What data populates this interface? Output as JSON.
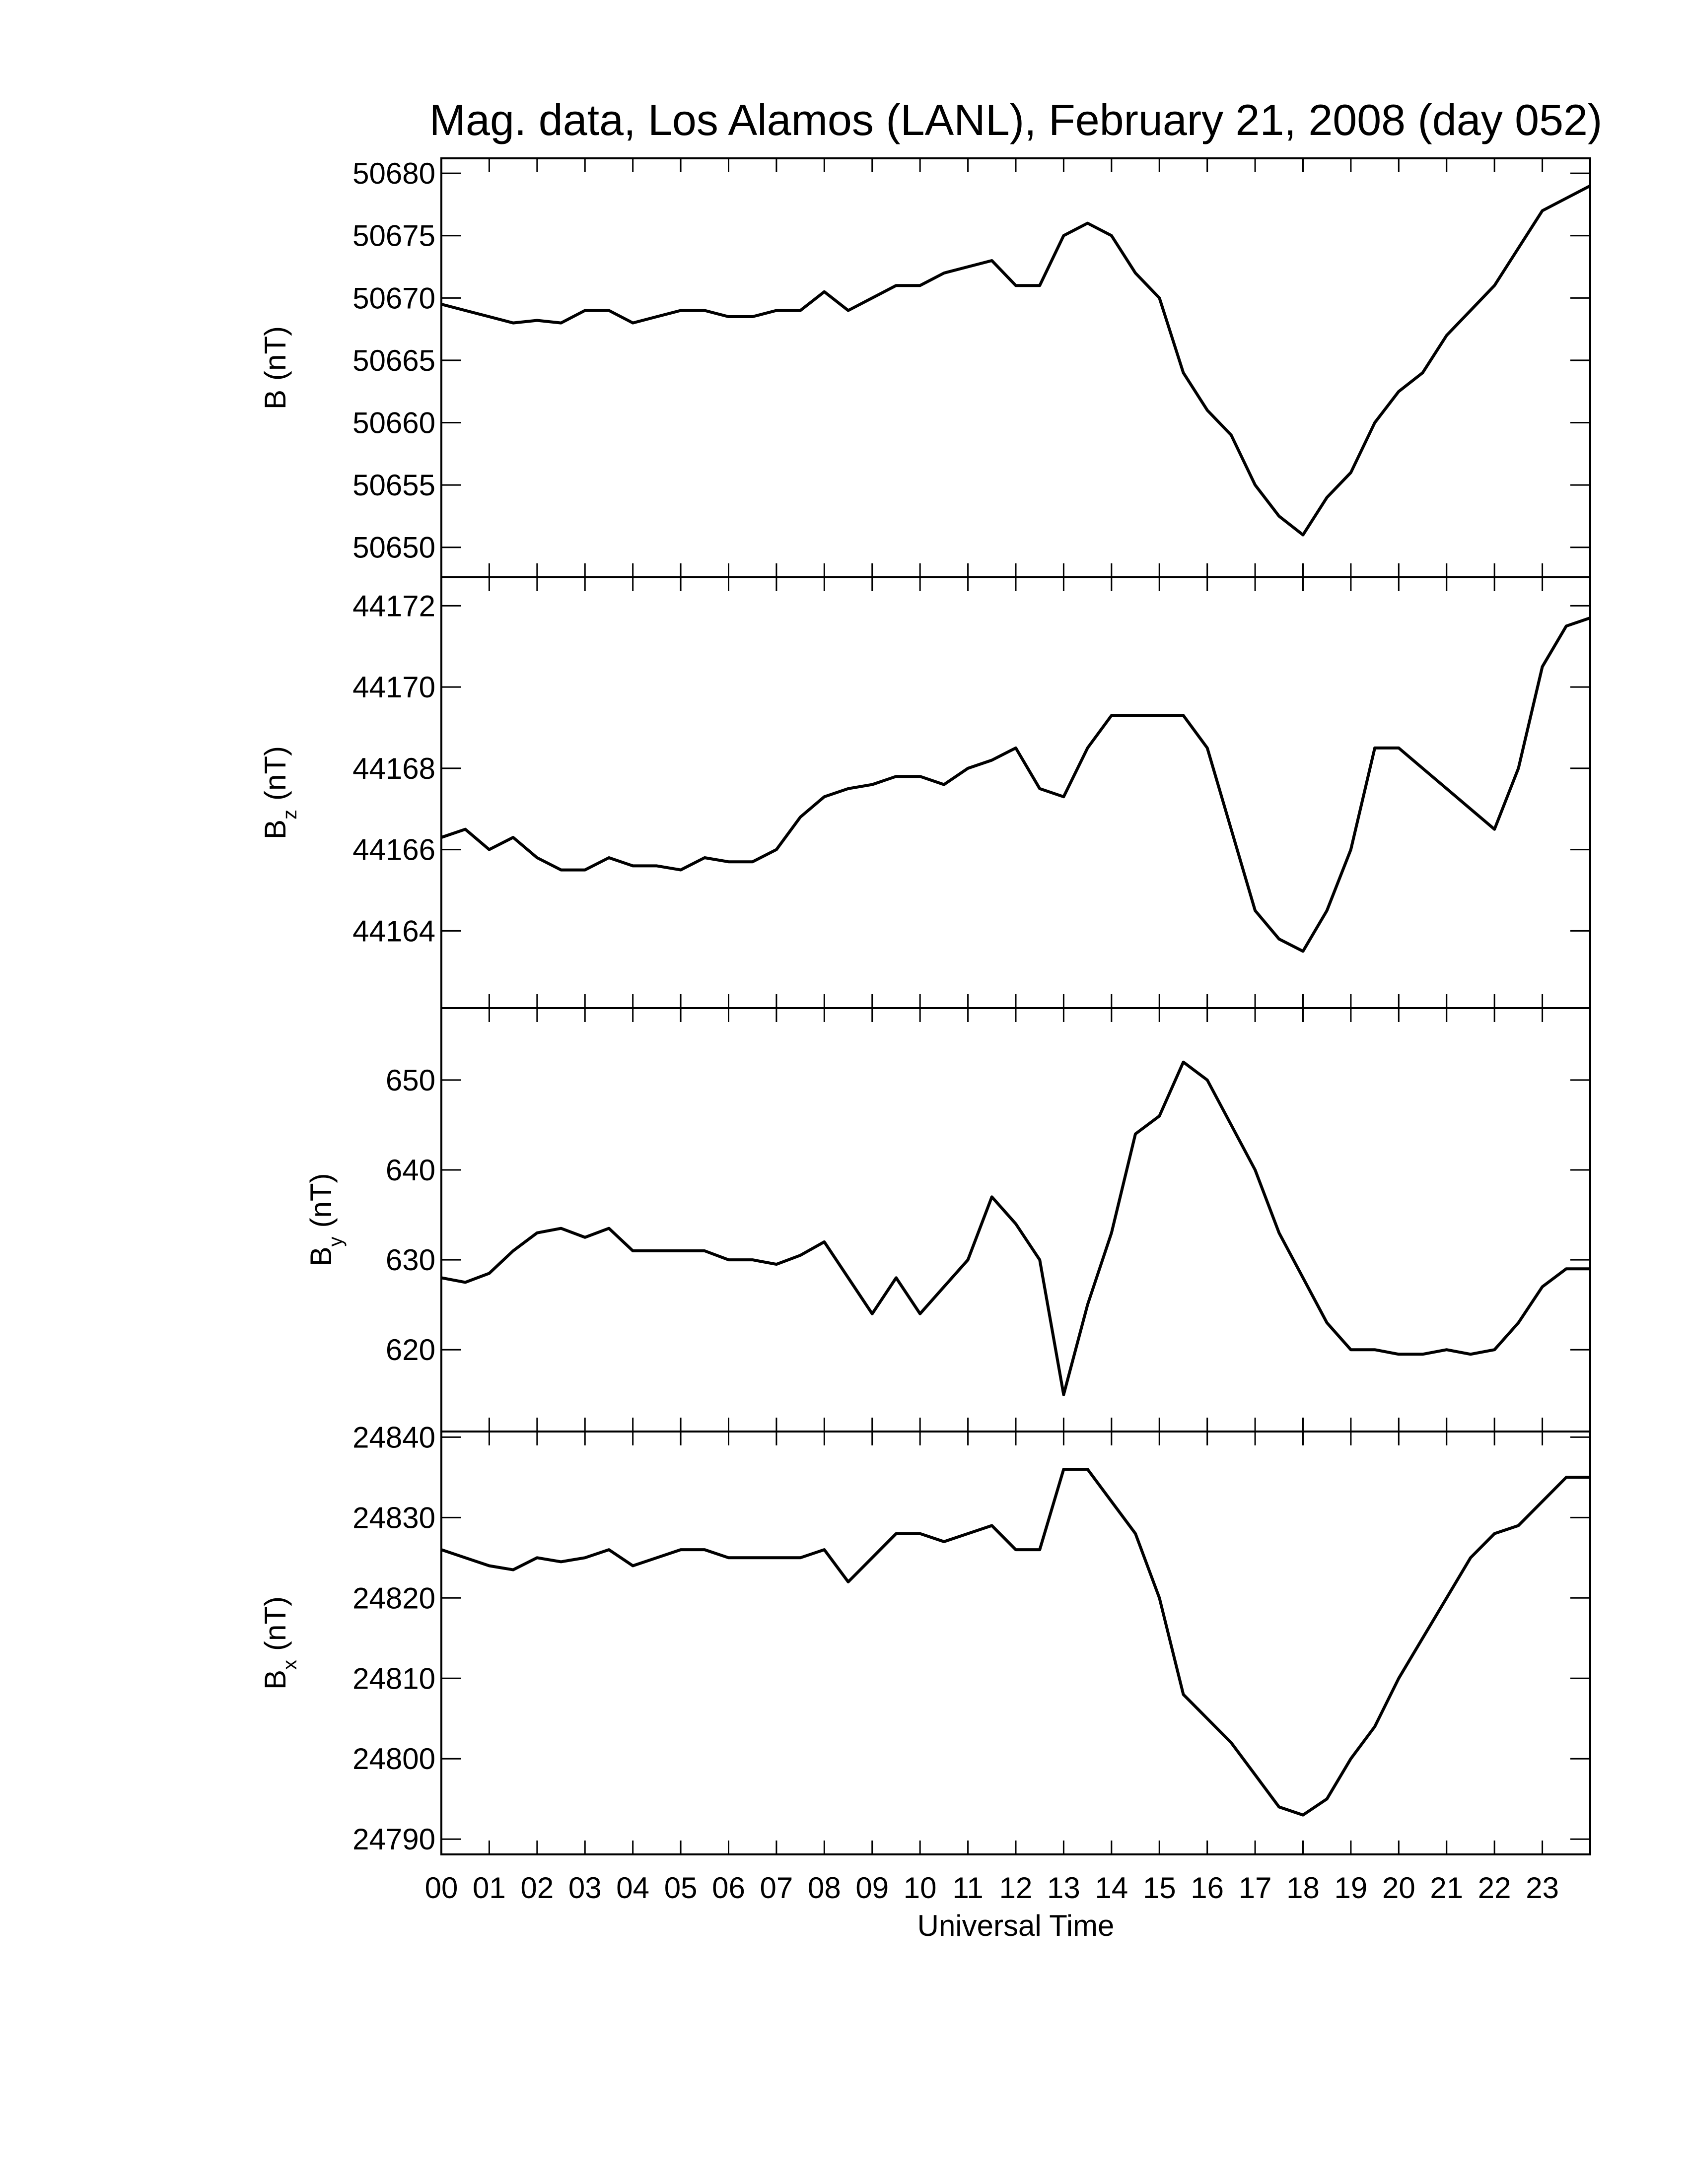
{
  "title": "Mag. data, Los Alamos (LANL), February 21, 2008 (day 052)",
  "chart_data": [
    {
      "type": "line",
      "ylabel_main": "B",
      "ylabel_unit": "(nT)",
      "color": "#000000",
      "xlim": [
        0,
        24
      ],
      "ylim": [
        50647.6,
        50681.2
      ],
      "yticks": [
        50650,
        50655,
        50660,
        50665,
        50670,
        50675,
        50680
      ],
      "x": [
        0,
        0.5,
        1,
        1.5,
        2,
        2.5,
        3,
        3.5,
        4,
        4.5,
        5,
        5.5,
        6,
        6.5,
        7,
        7.5,
        8,
        8.5,
        9,
        9.5,
        10,
        10.5,
        11,
        11.5,
        12,
        12.5,
        13,
        13.5,
        14,
        14.5,
        15,
        15.5,
        16,
        16.5,
        17,
        17.5,
        18,
        18.5,
        19,
        19.5,
        20,
        20.5,
        21,
        21.5,
        22,
        22.5,
        23,
        23.5,
        24
      ],
      "values": [
        50669.5,
        50669,
        50668.5,
        50668,
        50668.2,
        50668,
        50669,
        50669,
        50668,
        50668.5,
        50669,
        50669,
        50668.5,
        50668.5,
        50669,
        50669,
        50670.5,
        50669,
        50670,
        50671,
        50671,
        50672,
        50672.5,
        50673,
        50671,
        50671,
        50675,
        50676,
        50675,
        50672,
        50670,
        50664,
        50661,
        50659,
        50655,
        50652.5,
        50651,
        50654,
        50656,
        50660,
        50662.5,
        50664,
        50667,
        50669,
        50671,
        50674,
        50677,
        50678,
        50679
      ]
    },
    {
      "type": "line",
      "ylabel_main": "B",
      "ylabel_sub": "z",
      "ylabel_unit": "(nT)",
      "color": "#000000",
      "xlim": [
        0,
        24
      ],
      "ylim": [
        44162.1,
        44172.7
      ],
      "yticks": [
        44164,
        44166,
        44168,
        44170,
        44172
      ],
      "x": [
        0,
        0.5,
        1,
        1.5,
        2,
        2.5,
        3,
        3.5,
        4,
        4.5,
        5,
        5.5,
        6,
        6.5,
        7,
        7.5,
        8,
        8.5,
        9,
        9.5,
        10,
        10.5,
        11,
        11.5,
        12,
        12.5,
        13,
        13.5,
        14,
        14.5,
        15,
        15.5,
        16,
        16.5,
        17,
        17.5,
        18,
        18.5,
        19,
        19.5,
        20,
        20.5,
        21,
        21.5,
        22,
        22.5,
        23,
        23.5,
        24
      ],
      "values": [
        44166.3,
        44166.5,
        44166,
        44166.3,
        44165.8,
        44165.5,
        44165.5,
        44165.8,
        44165.6,
        44165.6,
        44165.5,
        44165.8,
        44165.7,
        44165.7,
        44166,
        44166.8,
        44167.3,
        44167.5,
        44167.6,
        44167.8,
        44167.8,
        44167.6,
        44168,
        44168.2,
        44168.5,
        44167.5,
        44167.3,
        44168.5,
        44169.3,
        44169.3,
        44169.3,
        44169.3,
        44168.5,
        44166.5,
        44164.5,
        44163.8,
        44163.5,
        44164.5,
        44166,
        44168.5,
        44168.5,
        44168,
        44167.5,
        44167,
        44166.5,
        44168,
        44170.5,
        44171.5,
        44171.7
      ]
    },
    {
      "type": "line",
      "ylabel_main": "B",
      "ylabel_sub": "y",
      "ylabel_unit": "(nT)",
      "color": "#000000",
      "xlim": [
        0,
        24
      ],
      "ylim": [
        610.9,
        658.0
      ],
      "yticks": [
        620,
        630,
        640,
        650
      ],
      "x": [
        0,
        0.5,
        1,
        1.5,
        2,
        2.5,
        3,
        3.5,
        4,
        4.5,
        5,
        5.5,
        6,
        6.5,
        7,
        7.5,
        8,
        8.5,
        9,
        9.5,
        10,
        10.5,
        11,
        11.5,
        12,
        12.5,
        13,
        13.5,
        14,
        14.5,
        15,
        15.5,
        16,
        16.5,
        17,
        17.5,
        18,
        18.5,
        19,
        19.5,
        20,
        20.5,
        21,
        21.5,
        22,
        22.5,
        23,
        23.5,
        24
      ],
      "values": [
        628,
        627.5,
        628.5,
        631,
        633,
        633.5,
        632.5,
        633.5,
        631,
        631,
        631,
        631,
        630,
        630,
        629.5,
        630.5,
        632,
        628,
        624,
        628,
        624,
        627,
        630,
        637,
        634,
        630,
        615,
        625,
        633,
        644,
        646,
        652,
        650,
        645,
        640,
        633,
        628,
        623,
        620,
        620,
        619.5,
        619.5,
        620,
        619.5,
        620,
        623,
        627,
        629,
        629
      ]
    },
    {
      "type": "line",
      "ylabel_main": "B",
      "ylabel_sub": "x",
      "ylabel_unit": "(nT)",
      "color": "#000000",
      "xlabel": "Universal Time",
      "xlim": [
        0,
        24
      ],
      "ylim": [
        24788.1,
        24840.7
      ],
      "yticks": [
        24790,
        24800,
        24810,
        24820,
        24830,
        24840
      ],
      "xticks": [
        {
          "value": 0,
          "label": "00"
        },
        {
          "value": 1,
          "label": "01"
        },
        {
          "value": 2,
          "label": "02"
        },
        {
          "value": 3,
          "label": "03"
        },
        {
          "value": 4,
          "label": "04"
        },
        {
          "value": 5,
          "label": "05"
        },
        {
          "value": 6,
          "label": "06"
        },
        {
          "value": 7,
          "label": "07"
        },
        {
          "value": 8,
          "label": "08"
        },
        {
          "value": 9,
          "label": "09"
        },
        {
          "value": 10,
          "label": "10"
        },
        {
          "value": 11,
          "label": "11"
        },
        {
          "value": 12,
          "label": "12"
        },
        {
          "value": 13,
          "label": "13"
        },
        {
          "value": 14,
          "label": "14"
        },
        {
          "value": 15,
          "label": "15"
        },
        {
          "value": 16,
          "label": "16"
        },
        {
          "value": 17,
          "label": "17"
        },
        {
          "value": 18,
          "label": "18"
        },
        {
          "value": 19,
          "label": "19"
        },
        {
          "value": 20,
          "label": "20"
        },
        {
          "value": 21,
          "label": "21"
        },
        {
          "value": 22,
          "label": "22"
        },
        {
          "value": 23,
          "label": "23"
        }
      ],
      "x": [
        0,
        0.5,
        1,
        1.5,
        2,
        2.5,
        3,
        3.5,
        4,
        4.5,
        5,
        5.5,
        6,
        6.5,
        7,
        7.5,
        8,
        8.5,
        9,
        9.5,
        10,
        10.5,
        11,
        11.5,
        12,
        12.5,
        13,
        13.5,
        14,
        14.5,
        15,
        15.5,
        16,
        16.5,
        17,
        17.5,
        18,
        18.5,
        19,
        19.5,
        20,
        20.5,
        21,
        21.5,
        22,
        22.5,
        23,
        23.5,
        24
      ],
      "values": [
        24826,
        24825,
        24824,
        24823.5,
        24825,
        24824.5,
        24825,
        24826,
        24824,
        24825,
        24826,
        24826,
        24825,
        24825,
        24825,
        24825,
        24826,
        24822,
        24825,
        24828,
        24828,
        24827,
        24828,
        24829,
        24826,
        24826,
        24836,
        24836,
        24832,
        24828,
        24820,
        24808,
        24805,
        24802,
        24798,
        24794,
        24793,
        24795,
        24800,
        24804,
        24810,
        24815,
        24820,
        24825,
        24828,
        24829,
        24832,
        24835,
        24835
      ]
    }
  ]
}
